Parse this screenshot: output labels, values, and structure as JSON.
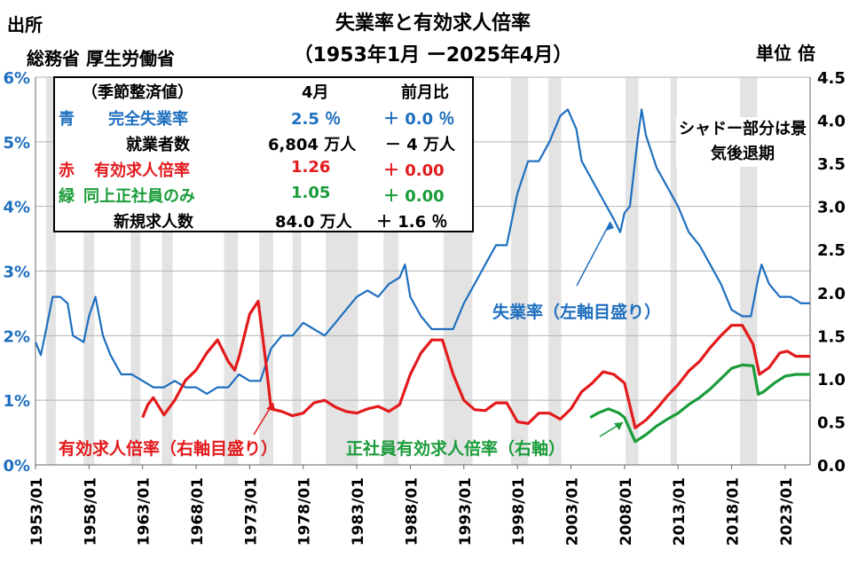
{
  "header": {
    "title_line1": "失業率と有効求人倍率",
    "title_line2": "（1953年1月 ー2025年4月）",
    "source_line1": "出所",
    "source_line2": "総務省 厚生労働省",
    "unit": "単位 倍"
  },
  "legend": {
    "header": {
      "label": "（季節整済値）",
      "month": "4月",
      "change": "前月比"
    },
    "rows": [
      {
        "color_name": "青",
        "label": "完全失業率",
        "value": "2.5 ％",
        "change": "＋ 0.0 ％",
        "color": "#1f6fbf"
      },
      {
        "color_name": "",
        "label": "就業者数",
        "value": "6,804 万人",
        "change": "－ 4 万人",
        "color": "#000000"
      },
      {
        "color_name": "赤",
        "label": "有効求人倍率",
        "value": "1.26",
        "change": "＋ 0.00",
        "color": "#e31a1c"
      },
      {
        "color_name": "緑",
        "label": "同上正社員のみ",
        "value": "1.05",
        "change": "＋ 0.00",
        "color": "#1a9c3a"
      },
      {
        "color_name": "",
        "label": "新規求人数",
        "value": "84.0 万人",
        "change": "＋ 1.6 ％",
        "color": "#000000"
      }
    ]
  },
  "shade_note": "シャドー部分は景気後退期",
  "annotations": {
    "unemployment": "失業率（左軸目盛り）",
    "jobs_ratio": "有効求人倍率（右軸目盛り）",
    "regular_ratio": "正社員有効求人倍率（右軸）"
  },
  "chart_data": {
    "type": "line",
    "x_ticks": [
      "1953/01",
      "1958/01",
      "1963/01",
      "1968/01",
      "1973/01",
      "1978/01",
      "1983/01",
      "1988/01",
      "1993/01",
      "1998/01",
      "2003/01",
      "2008/01",
      "2013/01",
      "2018/01",
      "2023/01"
    ],
    "x_range": [
      1953.0,
      2025.33
    ],
    "y_left": {
      "ticks": [
        "0%",
        "1%",
        "2%",
        "3%",
        "4%",
        "5%",
        "6%"
      ],
      "range": [
        0,
        6
      ]
    },
    "y_right": {
      "ticks": [
        "0.0",
        "0.5",
        "1.0",
        "1.5",
        "2.0",
        "2.5",
        "3.0",
        "3.5",
        "4.0",
        "4.5"
      ],
      "range": [
        0,
        4.5
      ]
    },
    "grid": true,
    "recessions": [
      [
        1954.0,
        1954.9
      ],
      [
        1957.5,
        1958.5
      ],
      [
        1961.9,
        1962.8
      ],
      [
        1964.8,
        1965.8
      ],
      [
        1970.6,
        1971.9
      ],
      [
        1973.9,
        1975.2
      ],
      [
        1977.0,
        1977.8
      ],
      [
        1980.1,
        1983.1
      ],
      [
        1985.5,
        1986.9
      ],
      [
        1991.1,
        1993.8
      ],
      [
        1997.4,
        1999.0
      ],
      [
        2000.9,
        2002.1
      ],
      [
        2008.1,
        2009.3
      ],
      [
        2012.3,
        2012.9
      ],
      [
        2018.8,
        2020.4
      ]
    ],
    "series": [
      {
        "name": "失業率",
        "axis": "left",
        "color": "#1f6fbf",
        "points": [
          [
            1953.0,
            1.9
          ],
          [
            1953.5,
            1.7
          ],
          [
            1954.0,
            2.1
          ],
          [
            1954.6,
            2.6
          ],
          [
            1955.3,
            2.6
          ],
          [
            1956.0,
            2.5
          ],
          [
            1956.5,
            2.0
          ],
          [
            1957.5,
            1.9
          ],
          [
            1958.0,
            2.3
          ],
          [
            1958.6,
            2.6
          ],
          [
            1959.3,
            2.0
          ],
          [
            1960.0,
            1.7
          ],
          [
            1961.0,
            1.4
          ],
          [
            1962.0,
            1.4
          ],
          [
            1963.0,
            1.3
          ],
          [
            1964.0,
            1.2
          ],
          [
            1965.0,
            1.2
          ],
          [
            1966.0,
            1.3
          ],
          [
            1967.0,
            1.2
          ],
          [
            1968.0,
            1.2
          ],
          [
            1969.0,
            1.1
          ],
          [
            1970.0,
            1.2
          ],
          [
            1971.0,
            1.2
          ],
          [
            1972.0,
            1.4
          ],
          [
            1973.0,
            1.3
          ],
          [
            1974.0,
            1.3
          ],
          [
            1975.0,
            1.8
          ],
          [
            1976.0,
            2.0
          ],
          [
            1977.0,
            2.0
          ],
          [
            1978.0,
            2.2
          ],
          [
            1979.0,
            2.1
          ],
          [
            1980.0,
            2.0
          ],
          [
            1981.0,
            2.2
          ],
          [
            1982.0,
            2.4
          ],
          [
            1983.0,
            2.6
          ],
          [
            1984.0,
            2.7
          ],
          [
            1985.0,
            2.6
          ],
          [
            1986.0,
            2.8
          ],
          [
            1987.0,
            2.9
          ],
          [
            1987.5,
            3.1
          ],
          [
            1988.0,
            2.6
          ],
          [
            1989.0,
            2.3
          ],
          [
            1990.0,
            2.1
          ],
          [
            1991.0,
            2.1
          ],
          [
            1992.0,
            2.1
          ],
          [
            1993.0,
            2.5
          ],
          [
            1994.0,
            2.8
          ],
          [
            1995.0,
            3.1
          ],
          [
            1996.0,
            3.4
          ],
          [
            1997.0,
            3.4
          ],
          [
            1998.0,
            4.2
          ],
          [
            1999.0,
            4.7
          ],
          [
            2000.0,
            4.7
          ],
          [
            2001.0,
            5.0
          ],
          [
            2002.0,
            5.4
          ],
          [
            2002.7,
            5.5
          ],
          [
            2003.5,
            5.2
          ],
          [
            2004.0,
            4.7
          ],
          [
            2005.0,
            4.4
          ],
          [
            2006.0,
            4.1
          ],
          [
            2007.0,
            3.8
          ],
          [
            2007.6,
            3.6
          ],
          [
            2008.0,
            3.9
          ],
          [
            2008.5,
            4.0
          ],
          [
            2009.2,
            5.0
          ],
          [
            2009.6,
            5.5
          ],
          [
            2010.0,
            5.1
          ],
          [
            2011.0,
            4.6
          ],
          [
            2012.0,
            4.3
          ],
          [
            2013.0,
            4.0
          ],
          [
            2014.0,
            3.6
          ],
          [
            2015.0,
            3.4
          ],
          [
            2016.0,
            3.1
          ],
          [
            2017.0,
            2.8
          ],
          [
            2018.0,
            2.4
          ],
          [
            2019.0,
            2.3
          ],
          [
            2019.8,
            2.3
          ],
          [
            2020.5,
            2.9
          ],
          [
            2020.8,
            3.1
          ],
          [
            2021.5,
            2.8
          ],
          [
            2022.5,
            2.6
          ],
          [
            2023.5,
            2.6
          ],
          [
            2024.5,
            2.5
          ],
          [
            2025.33,
            2.5
          ]
        ]
      },
      {
        "name": "有効求人倍率",
        "axis": "right",
        "color": "#e31a1c",
        "points": [
          [
            1963.0,
            0.55
          ],
          [
            1963.5,
            0.7
          ],
          [
            1964.0,
            0.78
          ],
          [
            1965.0,
            0.58
          ],
          [
            1966.0,
            0.75
          ],
          [
            1967.0,
            0.98
          ],
          [
            1968.0,
            1.1
          ],
          [
            1969.0,
            1.3
          ],
          [
            1970.0,
            1.45
          ],
          [
            1971.0,
            1.2
          ],
          [
            1971.6,
            1.1
          ],
          [
            1972.0,
            1.25
          ],
          [
            1973.0,
            1.75
          ],
          [
            1973.8,
            1.9
          ],
          [
            1974.5,
            1.2
          ],
          [
            1975.0,
            0.65
          ],
          [
            1976.0,
            0.62
          ],
          [
            1977.0,
            0.57
          ],
          [
            1978.0,
            0.6
          ],
          [
            1979.0,
            0.72
          ],
          [
            1980.0,
            0.75
          ],
          [
            1981.0,
            0.67
          ],
          [
            1982.0,
            0.62
          ],
          [
            1983.0,
            0.6
          ],
          [
            1984.0,
            0.65
          ],
          [
            1985.0,
            0.68
          ],
          [
            1986.0,
            0.62
          ],
          [
            1987.0,
            0.7
          ],
          [
            1988.0,
            1.05
          ],
          [
            1989.0,
            1.3
          ],
          [
            1990.0,
            1.45
          ],
          [
            1991.0,
            1.45
          ],
          [
            1992.0,
            1.05
          ],
          [
            1993.0,
            0.75
          ],
          [
            1994.0,
            0.64
          ],
          [
            1995.0,
            0.63
          ],
          [
            1996.0,
            0.72
          ],
          [
            1997.0,
            0.72
          ],
          [
            1998.0,
            0.5
          ],
          [
            1999.0,
            0.48
          ],
          [
            2000.0,
            0.6
          ],
          [
            2001.0,
            0.6
          ],
          [
            2002.0,
            0.53
          ],
          [
            2003.0,
            0.65
          ],
          [
            2004.0,
            0.85
          ],
          [
            2005.0,
            0.95
          ],
          [
            2006.0,
            1.08
          ],
          [
            2007.0,
            1.05
          ],
          [
            2008.0,
            0.95
          ],
          [
            2009.0,
            0.43
          ],
          [
            2010.0,
            0.52
          ],
          [
            2011.0,
            0.65
          ],
          [
            2012.0,
            0.8
          ],
          [
            2013.0,
            0.93
          ],
          [
            2014.0,
            1.09
          ],
          [
            2015.0,
            1.2
          ],
          [
            2016.0,
            1.36
          ],
          [
            2017.0,
            1.5
          ],
          [
            2018.0,
            1.62
          ],
          [
            2019.0,
            1.62
          ],
          [
            2020.0,
            1.4
          ],
          [
            2020.6,
            1.05
          ],
          [
            2021.5,
            1.13
          ],
          [
            2022.5,
            1.3
          ],
          [
            2023.2,
            1.32
          ],
          [
            2024.0,
            1.26
          ],
          [
            2025.33,
            1.26
          ]
        ]
      },
      {
        "name": "正社員有効求人倍率",
        "axis": "right",
        "color": "#1a9c3a",
        "points": [
          [
            2004.8,
            0.55
          ],
          [
            2005.5,
            0.6
          ],
          [
            2006.5,
            0.65
          ],
          [
            2007.5,
            0.6
          ],
          [
            2008.0,
            0.55
          ],
          [
            2009.0,
            0.27
          ],
          [
            2010.0,
            0.35
          ],
          [
            2011.0,
            0.45
          ],
          [
            2012.0,
            0.53
          ],
          [
            2013.0,
            0.6
          ],
          [
            2014.0,
            0.7
          ],
          [
            2015.0,
            0.78
          ],
          [
            2016.0,
            0.88
          ],
          [
            2017.0,
            1.0
          ],
          [
            2018.0,
            1.12
          ],
          [
            2019.0,
            1.16
          ],
          [
            2020.0,
            1.15
          ],
          [
            2020.5,
            0.82
          ],
          [
            2021.0,
            0.85
          ],
          [
            2022.0,
            0.95
          ],
          [
            2023.0,
            1.03
          ],
          [
            2024.0,
            1.05
          ],
          [
            2025.33,
            1.05
          ]
        ]
      }
    ]
  }
}
